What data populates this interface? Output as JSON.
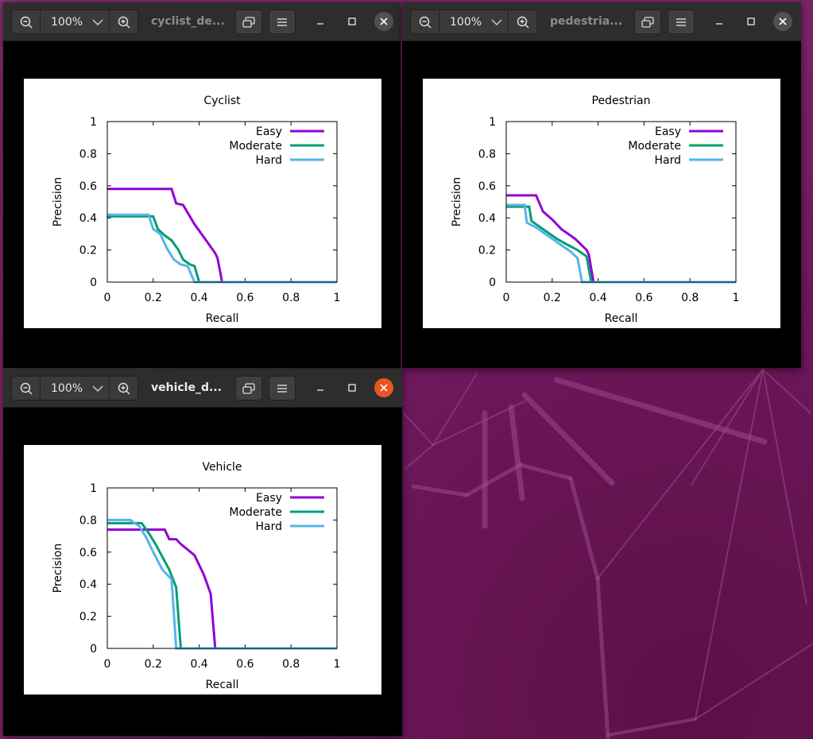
{
  "desktop": {
    "wallpaper": "ubuntu-purple-geometric"
  },
  "windows": [
    {
      "id": "cyclist",
      "title": "cyclist_de...",
      "zoom": "100%",
      "active": false,
      "chart_data": {
        "type": "line",
        "title": "Cyclist",
        "xlabel": "Recall",
        "ylabel": "Precision",
        "xlim": [
          0,
          1
        ],
        "ylim": [
          0,
          1
        ],
        "xticks": [
          "0",
          "0.2",
          "0.4",
          "0.6",
          "0.8",
          "1"
        ],
        "yticks": [
          "0",
          "0.2",
          "0.4",
          "0.6",
          "0.8",
          "1"
        ],
        "legend_position": "top-right",
        "series": [
          {
            "name": "Easy",
            "color": "#9400d3",
            "points": [
              [
                0,
                0.58
              ],
              [
                0.28,
                0.58
              ],
              [
                0.3,
                0.49
              ],
              [
                0.33,
                0.48
              ],
              [
                0.38,
                0.36
              ],
              [
                0.42,
                0.28
              ],
              [
                0.47,
                0.18
              ],
              [
                0.48,
                0.15
              ],
              [
                0.5,
                0
              ],
              [
                1,
                0
              ]
            ]
          },
          {
            "name": "Moderate",
            "color": "#009e73",
            "points": [
              [
                0,
                0.41
              ],
              [
                0.2,
                0.41
              ],
              [
                0.22,
                0.33
              ],
              [
                0.25,
                0.29
              ],
              [
                0.28,
                0.26
              ],
              [
                0.31,
                0.2
              ],
              [
                0.33,
                0.14
              ],
              [
                0.36,
                0.11
              ],
              [
                0.38,
                0.1
              ],
              [
                0.4,
                0
              ],
              [
                1,
                0
              ]
            ]
          },
          {
            "name": "Hard",
            "color": "#56b4e9",
            "points": [
              [
                0,
                0.42
              ],
              [
                0.18,
                0.42
              ],
              [
                0.2,
                0.33
              ],
              [
                0.23,
                0.3
              ],
              [
                0.26,
                0.21
              ],
              [
                0.29,
                0.14
              ],
              [
                0.32,
                0.11
              ],
              [
                0.35,
                0.1
              ],
              [
                0.38,
                0
              ],
              [
                1,
                0
              ]
            ]
          }
        ]
      }
    },
    {
      "id": "pedestrian",
      "title": "pedestria...",
      "zoom": "100%",
      "active": false,
      "chart_data": {
        "type": "line",
        "title": "Pedestrian",
        "xlabel": "Recall",
        "ylabel": "Precision",
        "xlim": [
          0,
          1
        ],
        "ylim": [
          0,
          1
        ],
        "xticks": [
          "0",
          "0.2",
          "0.4",
          "0.6",
          "0.8",
          "1"
        ],
        "yticks": [
          "0",
          "0.2",
          "0.4",
          "0.6",
          "0.8",
          "1"
        ],
        "legend_position": "top-right",
        "series": [
          {
            "name": "Easy",
            "color": "#9400d3",
            "points": [
              [
                0,
                0.54
              ],
              [
                0.13,
                0.54
              ],
              [
                0.16,
                0.44
              ],
              [
                0.2,
                0.39
              ],
              [
                0.24,
                0.33
              ],
              [
                0.3,
                0.27
              ],
              [
                0.35,
                0.2
              ],
              [
                0.36,
                0.17
              ],
              [
                0.38,
                0
              ],
              [
                1,
                0
              ]
            ]
          },
          {
            "name": "Moderate",
            "color": "#009e73",
            "points": [
              [
                0,
                0.47
              ],
              [
                0.1,
                0.47
              ],
              [
                0.11,
                0.38
              ],
              [
                0.14,
                0.35
              ],
              [
                0.18,
                0.31
              ],
              [
                0.22,
                0.27
              ],
              [
                0.27,
                0.23
              ],
              [
                0.31,
                0.2
              ],
              [
                0.35,
                0.16
              ],
              [
                0.37,
                0
              ],
              [
                1,
                0
              ]
            ]
          },
          {
            "name": "Hard",
            "color": "#56b4e9",
            "points": [
              [
                0,
                0.48
              ],
              [
                0.08,
                0.48
              ],
              [
                0.09,
                0.37
              ],
              [
                0.13,
                0.34
              ],
              [
                0.17,
                0.3
              ],
              [
                0.22,
                0.25
              ],
              [
                0.28,
                0.19
              ],
              [
                0.31,
                0.15
              ],
              [
                0.33,
                0
              ],
              [
                1,
                0
              ]
            ]
          }
        ]
      }
    },
    {
      "id": "vehicle",
      "title": "vehicle_d...",
      "zoom": "100%",
      "active": true,
      "chart_data": {
        "type": "line",
        "title": "Vehicle",
        "xlabel": "Recall",
        "ylabel": "Precision",
        "xlim": [
          0,
          1
        ],
        "ylim": [
          0,
          1
        ],
        "xticks": [
          "0",
          "0.2",
          "0.4",
          "0.6",
          "0.8",
          "1"
        ],
        "yticks": [
          "0",
          "0.2",
          "0.4",
          "0.6",
          "0.8",
          "1"
        ],
        "legend_position": "top-right",
        "series": [
          {
            "name": "Easy",
            "color": "#9400d3",
            "points": [
              [
                0,
                0.74
              ],
              [
                0.25,
                0.74
              ],
              [
                0.27,
                0.68
              ],
              [
                0.3,
                0.68
              ],
              [
                0.32,
                0.65
              ],
              [
                0.38,
                0.58
              ],
              [
                0.42,
                0.46
              ],
              [
                0.45,
                0.34
              ],
              [
                0.47,
                0
              ],
              [
                1,
                0
              ]
            ]
          },
          {
            "name": "Moderate",
            "color": "#009e73",
            "points": [
              [
                0,
                0.78
              ],
              [
                0.15,
                0.78
              ],
              [
                0.18,
                0.72
              ],
              [
                0.21,
                0.65
              ],
              [
                0.24,
                0.57
              ],
              [
                0.27,
                0.49
              ],
              [
                0.3,
                0.38
              ],
              [
                0.32,
                0
              ],
              [
                1,
                0
              ]
            ]
          },
          {
            "name": "Hard",
            "color": "#56b4e9",
            "points": [
              [
                0,
                0.8
              ],
              [
                0.1,
                0.8
              ],
              [
                0.14,
                0.76
              ],
              [
                0.17,
                0.69
              ],
              [
                0.2,
                0.6
              ],
              [
                0.24,
                0.49
              ],
              [
                0.28,
                0.43
              ],
              [
                0.3,
                0
              ],
              [
                1,
                0
              ]
            ]
          }
        ]
      }
    }
  ]
}
